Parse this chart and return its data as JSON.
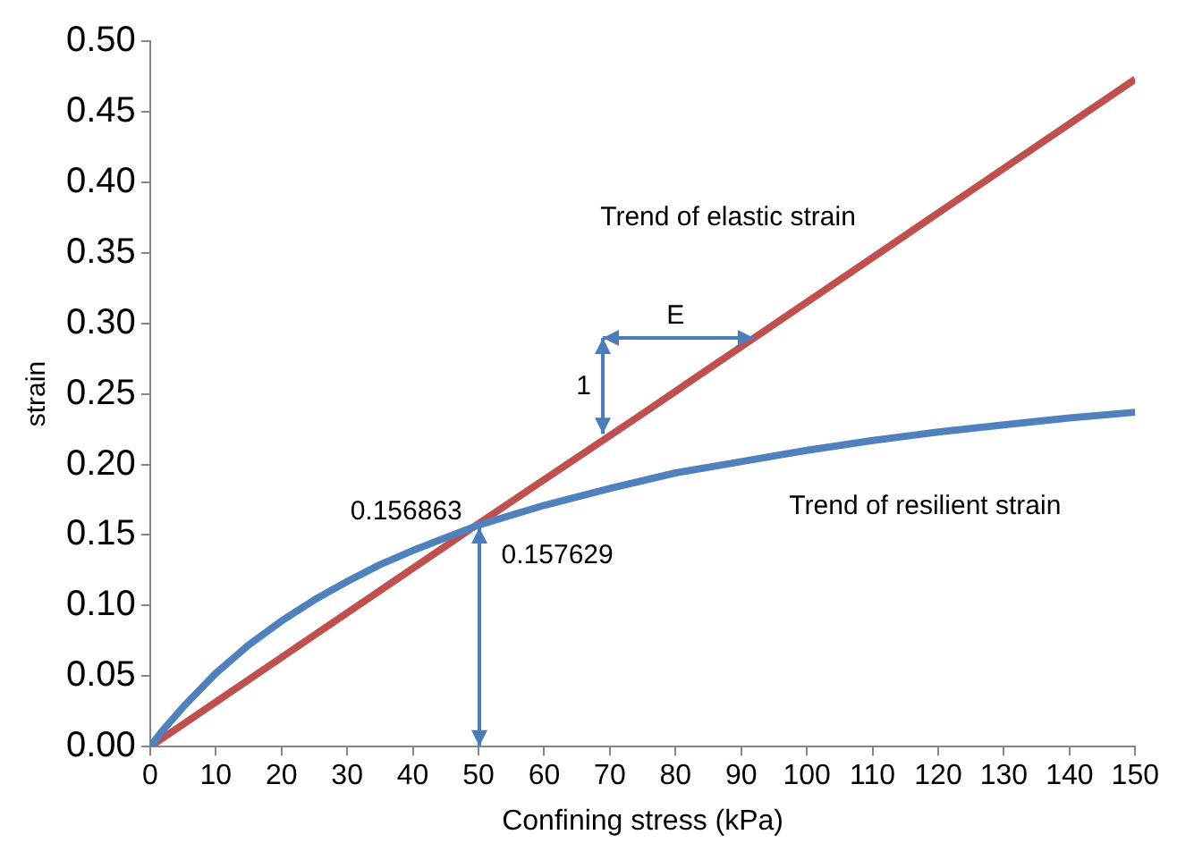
{
  "chart_data": {
    "type": "line",
    "xlabel": "Confining stress (kPa)",
    "ylabel": "strain",
    "xlim": [
      0,
      150
    ],
    "xticks": [
      0,
      10,
      20,
      30,
      40,
      50,
      60,
      70,
      80,
      90,
      100,
      110,
      120,
      130,
      140,
      150
    ],
    "ylim": [
      0,
      0.5
    ],
    "yticks": [
      {
        "value": 0,
        "label": "0.00"
      },
      {
        "value": 0.05,
        "label": "0.05"
      },
      {
        "value": 0.1,
        "label": "0.10"
      },
      {
        "value": 0.15,
        "label": "0.15"
      },
      {
        "value": 0.2,
        "label": "0.20"
      },
      {
        "value": 0.25,
        "label": "0.25"
      },
      {
        "value": 0.3,
        "label": "0.30"
      },
      {
        "value": 0.35,
        "label": "0.35"
      },
      {
        "value": 0.4,
        "label": "0.40"
      },
      {
        "value": 0.45,
        "label": "0.45"
      },
      {
        "value": 0.5,
        "label": "0.50"
      }
    ],
    "grid": false,
    "legend": false,
    "marker": "none",
    "line_style": "solid",
    "series": [
      {
        "color": "#4f81bd",
        "x": [
          0,
          2,
          5,
          10,
          15,
          20,
          25,
          30,
          35,
          40,
          45,
          50,
          60,
          70,
          80,
          90,
          100,
          110,
          120,
          130,
          140,
          150
        ],
        "values": [
          0,
          0.012,
          0.028,
          0.052,
          0.072,
          0.089,
          0.104,
          0.117,
          0.129,
          0.139,
          0.148,
          0.157,
          0.171,
          0.183,
          0.194,
          0.202,
          0.21,
          0.217,
          0.223,
          0.228,
          0.233,
          0.237
        ]
      },
      {
        "color": "#c0504d",
        "x": [
          0,
          25,
          50,
          75,
          100,
          125,
          150
        ],
        "values": [
          0,
          0.079,
          0.158,
          0.236,
          0.315,
          0.394,
          0.473
        ]
      }
    ],
    "annotations": [
      "Trend of elastic strain",
      "Trend of resilient strain",
      "0.156863",
      "0.157629",
      "E",
      "1"
    ]
  }
}
